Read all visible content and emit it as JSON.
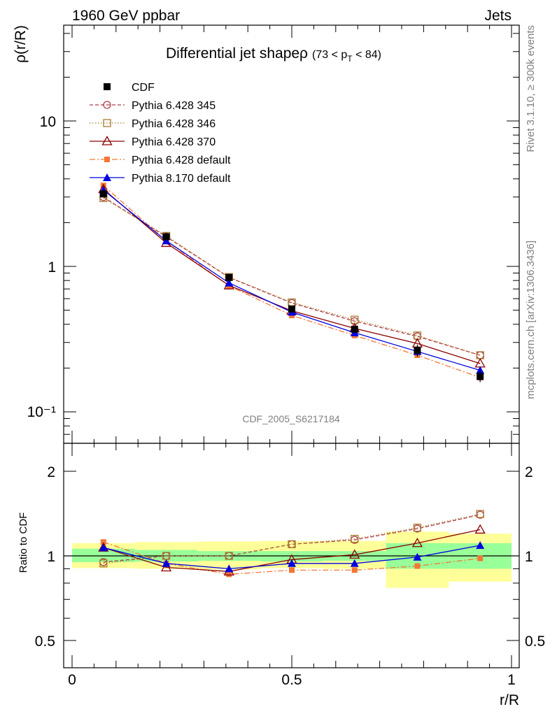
{
  "header": {
    "left": "1960 GeV ppbar",
    "right": "Jets"
  },
  "side_labels": {
    "rivet": "Rivet 3.1.10, ≥ 300k events",
    "mcplots": "mcplots.cern.ch [arXiv:1306.3436]"
  },
  "chart_data": [
    {
      "type": "line",
      "title": "Differential jet shapeρ",
      "title_suffix": "(73 < p",
      "title_sub": "T",
      "title_suffix_end": " < 84)",
      "ylabel": "ρ(r/R)",
      "xlabel": "r/R",
      "yscale": "log",
      "xlim": [
        0,
        1
      ],
      "ylim": [
        0.065,
        45
      ],
      "y_tick_labels": [
        "10⁻¹",
        "1",
        "10"
      ],
      "watermark": "CDF_2005_S6217184",
      "legend_position": "top-left",
      "x": [
        0.0714,
        0.2143,
        0.3571,
        0.5,
        0.6429,
        0.7857,
        0.9286
      ],
      "series": [
        {
          "name": "CDF",
          "color": "#000000",
          "marker": "filled-square",
          "style": "none",
          "values": [
            3.15,
            1.6,
            0.84,
            0.51,
            0.37,
            0.265,
            0.175
          ],
          "errors": [
            0.15,
            0.08,
            0.04,
            0.025,
            0.02,
            0.025,
            0.015
          ]
        },
        {
          "name": "Pythia 6.428 345",
          "color": "#b03a48",
          "marker": "open-circle",
          "style": "dashed",
          "values": [
            3.0,
            1.6,
            0.84,
            0.56,
            0.42,
            0.33,
            0.245
          ]
        },
        {
          "name": "Pythia 6.428 346",
          "color": "#a87c2f",
          "marker": "open-square",
          "style": "dotted",
          "values": [
            2.95,
            1.62,
            0.845,
            0.565,
            0.43,
            0.335,
            0.245
          ]
        },
        {
          "name": "Pythia 6.428 370",
          "color": "#8b0000",
          "marker": "open-triangle",
          "style": "solid",
          "values": [
            3.4,
            1.45,
            0.74,
            0.495,
            0.375,
            0.295,
            0.215
          ]
        },
        {
          "name": "Pythia 6.428 default",
          "color": "#f37735",
          "marker": "small-filled-square",
          "style": "dashdot",
          "values": [
            3.6,
            1.5,
            0.735,
            0.46,
            0.335,
            0.245,
            0.172
          ]
        },
        {
          "name": "Pythia 8.170 default",
          "color": "#0000e0",
          "marker": "filled-triangle",
          "style": "solid",
          "values": [
            3.35,
            1.5,
            0.77,
            0.485,
            0.35,
            0.26,
            0.193
          ]
        }
      ]
    },
    {
      "type": "line",
      "ylabel": "Ratio to CDF",
      "xlabel": "r/R",
      "yscale": "log",
      "xlim": [
        0,
        1
      ],
      "ylim": [
        0.4,
        2.5
      ],
      "y_tick_labels": [
        "0.5",
        "1",
        "2"
      ],
      "x_tick_labels": [
        "0",
        "0.5",
        "1"
      ],
      "bin_edges": [
        0,
        0.1429,
        0.2857,
        0.4286,
        0.5714,
        0.7143,
        0.8571,
        1.0
      ],
      "band_inner": [
        [
          0.95,
          1.06
        ],
        [
          0.955,
          1.05
        ],
        [
          0.96,
          1.04
        ],
        [
          0.955,
          1.04
        ],
        [
          0.96,
          1.04
        ],
        [
          0.9,
          1.11
        ],
        [
          0.9,
          1.11
        ]
      ],
      "band_outer": [
        [
          0.905,
          1.11
        ],
        [
          0.9,
          1.12
        ],
        [
          0.895,
          1.125
        ],
        [
          0.905,
          1.13
        ],
        [
          0.9,
          1.13
        ],
        [
          0.77,
          1.22
        ],
        [
          0.81,
          1.2
        ]
      ],
      "x": [
        0.0714,
        0.2143,
        0.3571,
        0.5,
        0.6429,
        0.7857,
        0.9286
      ],
      "series": [
        {
          "name": "Pythia 6.428 345",
          "color": "#b03a48",
          "marker": "open-circle",
          "style": "dashed",
          "values": [
            0.95,
            1.0,
            1.0,
            1.1,
            1.14,
            1.25,
            1.4
          ]
        },
        {
          "name": "Pythia 6.428 346",
          "color": "#a87c2f",
          "marker": "open-square",
          "style": "dotted",
          "values": [
            0.94,
            1.0,
            1.0,
            1.1,
            1.15,
            1.26,
            1.41
          ]
        },
        {
          "name": "Pythia 6.428 370",
          "color": "#8b0000",
          "marker": "open-triangle",
          "style": "solid",
          "values": [
            1.07,
            0.91,
            0.88,
            0.97,
            1.01,
            1.11,
            1.24
          ]
        },
        {
          "name": "Pythia 6.428 default",
          "color": "#f37735",
          "marker": "small-filled-square",
          "style": "dashdot",
          "values": [
            1.12,
            0.94,
            0.86,
            0.89,
            0.89,
            0.92,
            0.98
          ]
        },
        {
          "name": "Pythia 8.170 default",
          "color": "#0000e0",
          "marker": "filled-triangle",
          "style": "solid",
          "values": [
            1.07,
            0.94,
            0.9,
            0.94,
            0.94,
            0.99,
            1.09
          ]
        }
      ]
    }
  ]
}
